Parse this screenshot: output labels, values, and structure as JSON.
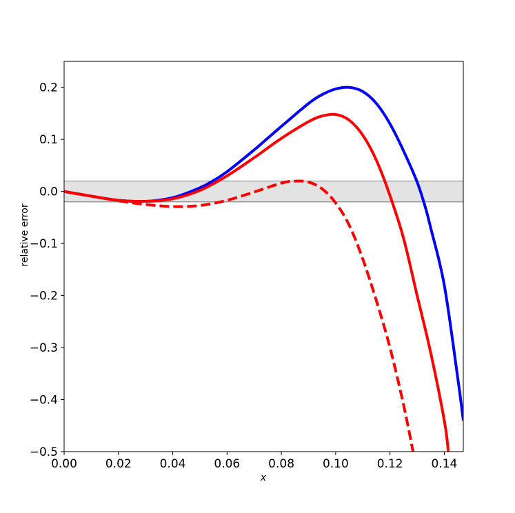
{
  "chart_data": {
    "type": "line",
    "title": "",
    "xlabel": "x",
    "ylabel": "relative error",
    "xlim": [
      0.0,
      0.147
    ],
    "ylim": [
      -0.5,
      0.25
    ],
    "x_ticks": [
      "0.00",
      "0.02",
      "0.04",
      "0.06",
      "0.08",
      "0.10",
      "0.12",
      "0.14"
    ],
    "x_tick_values": [
      0.0,
      0.02,
      0.04,
      0.06,
      0.08,
      0.1,
      0.12,
      0.14
    ],
    "y_ticks": [
      "−0.5",
      "−0.4",
      "−0.3",
      "−0.2",
      "−0.1",
      "0.0",
      "0.1",
      "0.2"
    ],
    "y_tick_values": [
      -0.5,
      -0.4,
      -0.3,
      -0.2,
      -0.1,
      0.0,
      0.1,
      0.2
    ],
    "grid": false,
    "legend": "none",
    "band": {
      "y_min": -0.02,
      "y_max": 0.02,
      "fill": "#e3e3e3",
      "edge": "#888888"
    },
    "series": [
      {
        "color": "#0000ff",
        "style": "solid",
        "x": [
          0.0,
          0.01,
          0.02,
          0.03,
          0.04,
          0.05,
          0.055,
          0.06,
          0.07,
          0.08,
          0.09,
          0.095,
          0.1,
          0.105,
          0.11,
          0.115,
          0.12,
          0.125,
          0.13,
          0.133,
          0.135,
          0.14,
          0.145,
          0.147
        ],
        "y": [
          0.0,
          -0.009,
          -0.017,
          -0.019,
          -0.012,
          0.007,
          0.021,
          0.038,
          0.08,
          0.125,
          0.169,
          0.186,
          0.197,
          0.2,
          0.192,
          0.169,
          0.13,
          0.078,
          0.018,
          -0.03,
          -0.07,
          -0.18,
          -0.36,
          -0.44
        ]
      },
      {
        "color": "#ff0000",
        "style": "solid",
        "x": [
          0.0,
          0.01,
          0.02,
          0.03,
          0.04,
          0.05,
          0.06,
          0.07,
          0.08,
          0.09,
          0.095,
          0.1,
          0.105,
          0.11,
          0.115,
          0.12,
          0.125,
          0.13,
          0.135,
          0.14,
          0.1415
        ],
        "y": [
          0.0,
          -0.009,
          -0.017,
          -0.019,
          -0.014,
          0.002,
          0.03,
          0.065,
          0.102,
          0.134,
          0.145,
          0.148,
          0.137,
          0.108,
          0.06,
          -0.008,
          -0.09,
          -0.2,
          -0.31,
          -0.44,
          -0.5
        ]
      },
      {
        "color": "#ff0000",
        "style": "dashed",
        "x": [
          0.0,
          0.01,
          0.02,
          0.03,
          0.04,
          0.05,
          0.06,
          0.07,
          0.08,
          0.085,
          0.09,
          0.095,
          0.1,
          0.105,
          0.11,
          0.115,
          0.12,
          0.125,
          0.1285
        ],
        "y": [
          0.0,
          -0.009,
          -0.018,
          -0.025,
          -0.029,
          -0.027,
          -0.017,
          -0.001,
          0.016,
          0.02,
          0.018,
          0.005,
          -0.022,
          -0.065,
          -0.13,
          -0.21,
          -0.3,
          -0.41,
          -0.5
        ]
      }
    ]
  }
}
